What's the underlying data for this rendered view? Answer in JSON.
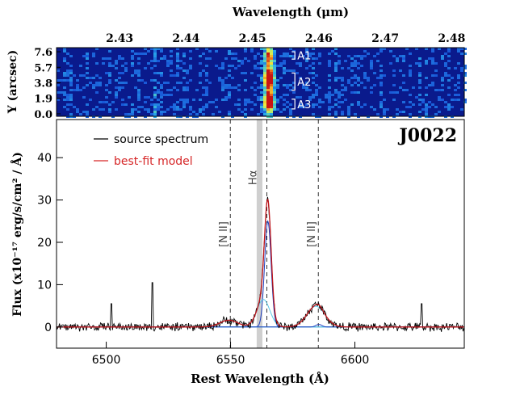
{
  "chart_data": [
    {
      "type": "heatmap",
      "panel": "2D spectrum",
      "title": "Wavelength (μm)",
      "xlabel": "Wavelength (μm)",
      "ylabel": "Y (arcsec)",
      "x_ticks": [
        "2.43",
        "2.44",
        "2.45",
        "2.46",
        "2.47",
        "2.48"
      ],
      "x_tick_values": [
        2.43,
        2.44,
        2.45,
        2.46,
        2.47,
        2.48
      ],
      "xlim": [
        2.4205,
        2.4819
      ],
      "y_ticks": [
        "0.0",
        "1.9",
        "3.8",
        "5.7",
        "7.6"
      ],
      "y_tick_values": [
        0.0,
        1.9,
        3.8,
        5.7,
        7.6
      ],
      "ylim": [
        -0.3,
        8.1
      ],
      "apertures": [
        {
          "label": "A1",
          "y_range": [
            6.7,
            7.6
          ]
        },
        {
          "label": "A2",
          "y_range": [
            2.9,
            5.0
          ]
        },
        {
          "label": "A3",
          "y_range": [
            0.6,
            1.8
          ]
        }
      ],
      "emission_center_um": 2.4525
    },
    {
      "type": "line",
      "panel": "1D spectrum",
      "target_name": "J0022",
      "xlabel": "Rest Wavelength (Å)",
      "ylabel": "Flux (x10⁻¹⁷ erg/s/cm² / Å)",
      "xlim": [
        6480,
        6644
      ],
      "ylim": [
        -5,
        49
      ],
      "x_ticks": [
        "6500",
        "6550",
        "6600"
      ],
      "x_tick_values": [
        6500,
        6550,
        6600
      ],
      "y_ticks": [
        "0",
        "10",
        "20",
        "30",
        "40"
      ],
      "y_tick_values": [
        0,
        10,
        20,
        30,
        40
      ],
      "legend": [
        {
          "label": "source spectrum",
          "color": "#000000"
        },
        {
          "label": "best-fit model",
          "color": "#d62728"
        }
      ],
      "line_labels": [
        {
          "label": "[N II]",
          "wavelength": 6549.9
        },
        {
          "label": "Hα",
          "wavelength": 6564.6
        },
        {
          "label": "[N II]",
          "wavelength": 6585.3
        }
      ],
      "shaded_band": [
        6560.5,
        6562.8
      ],
      "model_components": [
        {
          "name": "Hα narrow",
          "center": 6565.0,
          "amplitude": 25.0,
          "sigma": 1.3,
          "color": "#1f3fbf"
        },
        {
          "name": "Hα broad",
          "center": 6563.2,
          "amplitude": 6.5,
          "sigma": 2.6,
          "color": "#5bc8e8"
        },
        {
          "name": "[N II] 6585",
          "center": 6584.3,
          "amplitude": 4.9,
          "sigma": 3.6,
          "color": "#5bc8e8"
        },
        {
          "name": "[N II] 6550",
          "center": 6549.3,
          "amplitude": 1.6,
          "sigma": 3.6,
          "color": "#5bc8e8"
        },
        {
          "name": "[N II] 6585 narrow",
          "center": 6585.5,
          "amplitude": 0.6,
          "sigma": 1.2,
          "color": "#1f3fbf"
        }
      ],
      "spikes": [
        {
          "wavelength": 6502,
          "value": 5.5
        },
        {
          "wavelength": 6518.5,
          "value": 10.5
        },
        {
          "wavelength": 6627,
          "value": 5.5
        }
      ],
      "noise_amplitude": 0.9
    }
  ]
}
